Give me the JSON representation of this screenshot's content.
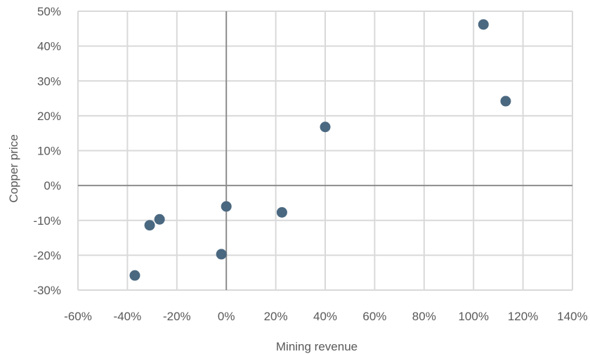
{
  "chart_data": {
    "type": "scatter",
    "xlabel": "Mining revenue",
    "ylabel": "Copper price",
    "xlim": [
      -60,
      140
    ],
    "ylim": [
      -30,
      50
    ],
    "x_ticks": [
      -60,
      -40,
      -20,
      0,
      20,
      40,
      60,
      80,
      100,
      120,
      140
    ],
    "y_ticks": [
      50,
      40,
      30,
      20,
      10,
      0,
      -10,
      -20,
      -30
    ],
    "x_tick_labels": [
      "-60%",
      "-40%",
      "-20%",
      "0%",
      "20%",
      "40%",
      "60%",
      "80%",
      "100%",
      "120%",
      "140%"
    ],
    "y_tick_labels": [
      "50%",
      "40%",
      "30%",
      "20%",
      "10%",
      "0%",
      "-10%",
      "-20%",
      "-30%"
    ],
    "grid": true,
    "marker_color": "#4a6880",
    "points": [
      {
        "x": 104,
        "y": 46.2
      },
      {
        "x": 113,
        "y": 24.2
      },
      {
        "x": 40,
        "y": 16.8
      },
      {
        "x": 0,
        "y": -6
      },
      {
        "x": 22.5,
        "y": -7.7
      },
      {
        "x": -27,
        "y": -9.7
      },
      {
        "x": -31,
        "y": -11.4
      },
      {
        "x": -2,
        "y": -19.7
      },
      {
        "x": -37,
        "y": -25.8
      }
    ]
  }
}
